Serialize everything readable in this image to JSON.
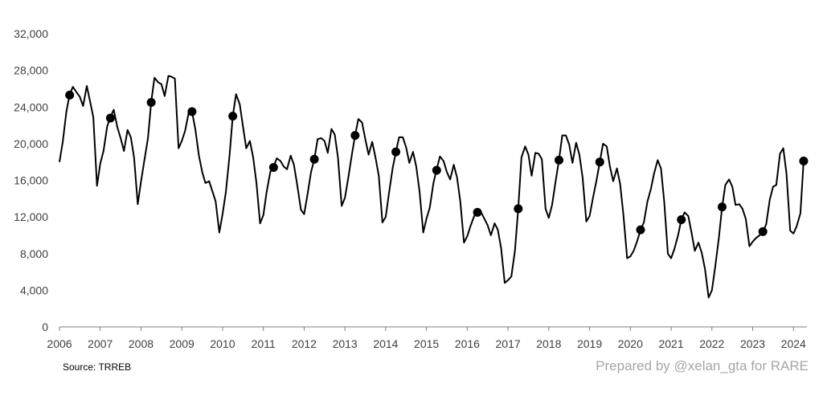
{
  "chart_data": {
    "type": "line",
    "title": "",
    "xlabel": "",
    "ylabel": "",
    "ylim": [
      0,
      32000
    ],
    "y_ticks": [
      "0",
      "4,000",
      "8,000",
      "12,000",
      "16,000",
      "20,000",
      "24,000",
      "28,000",
      "32,000"
    ],
    "x_ticks": [
      "2006",
      "2007",
      "2008",
      "2009",
      "2010",
      "2011",
      "2012",
      "2013",
      "2014",
      "2015",
      "2016",
      "2017",
      "2018",
      "2019",
      "2020",
      "2021",
      "2022",
      "2023",
      "2024"
    ],
    "grid": false,
    "line_color": "#000000",
    "series": [
      {
        "name": "",
        "values": [
          [
            2006.0,
            18000
          ],
          [
            2006.08,
            20200
          ],
          [
            2006.17,
            23500
          ],
          [
            2006.25,
            25400
          ],
          [
            2006.33,
            26200
          ],
          [
            2006.42,
            25600
          ],
          [
            2006.5,
            25100
          ],
          [
            2006.58,
            24100
          ],
          [
            2006.67,
            26300
          ],
          [
            2006.75,
            24600
          ],
          [
            2006.83,
            22900
          ],
          [
            2006.92,
            15400
          ],
          [
            2007.0,
            17800
          ],
          [
            2007.08,
            19200
          ],
          [
            2007.17,
            21900
          ],
          [
            2007.25,
            22900
          ],
          [
            2007.33,
            23700
          ],
          [
            2007.42,
            21800
          ],
          [
            2007.5,
            20600
          ],
          [
            2007.58,
            19200
          ],
          [
            2007.67,
            21500
          ],
          [
            2007.75,
            20700
          ],
          [
            2007.83,
            18500
          ],
          [
            2007.92,
            13400
          ],
          [
            2008.0,
            15900
          ],
          [
            2008.08,
            18100
          ],
          [
            2008.17,
            20600
          ],
          [
            2008.25,
            24600
          ],
          [
            2008.33,
            27200
          ],
          [
            2008.42,
            26700
          ],
          [
            2008.5,
            26500
          ],
          [
            2008.58,
            25200
          ],
          [
            2008.67,
            27400
          ],
          [
            2008.75,
            27300
          ],
          [
            2008.83,
            27100
          ],
          [
            2008.92,
            19500
          ],
          [
            2009.0,
            20300
          ],
          [
            2009.08,
            21400
          ],
          [
            2009.17,
            23400
          ],
          [
            2009.25,
            23500
          ],
          [
            2009.33,
            21600
          ],
          [
            2009.42,
            18700
          ],
          [
            2009.5,
            16900
          ],
          [
            2009.58,
            15700
          ],
          [
            2009.67,
            15900
          ],
          [
            2009.75,
            14800
          ],
          [
            2009.83,
            13700
          ],
          [
            2009.92,
            10300
          ],
          [
            2010.0,
            12300
          ],
          [
            2010.08,
            14700
          ],
          [
            2010.17,
            18700
          ],
          [
            2010.25,
            23000
          ],
          [
            2010.33,
            25400
          ],
          [
            2010.42,
            24300
          ],
          [
            2010.5,
            21900
          ],
          [
            2010.58,
            19500
          ],
          [
            2010.67,
            20300
          ],
          [
            2010.75,
            18500
          ],
          [
            2010.83,
            15700
          ],
          [
            2010.92,
            11300
          ],
          [
            2011.0,
            12200
          ],
          [
            2011.08,
            14700
          ],
          [
            2011.17,
            16900
          ],
          [
            2011.25,
            17500
          ],
          [
            2011.33,
            18400
          ],
          [
            2011.42,
            18100
          ],
          [
            2011.5,
            17500
          ],
          [
            2011.58,
            17200
          ],
          [
            2011.67,
            18700
          ],
          [
            2011.75,
            17700
          ],
          [
            2011.83,
            15500
          ],
          [
            2011.92,
            12800
          ],
          [
            2012.0,
            12300
          ],
          [
            2012.08,
            14400
          ],
          [
            2012.17,
            16900
          ],
          [
            2012.25,
            18300
          ],
          [
            2012.33,
            20500
          ],
          [
            2012.42,
            20600
          ],
          [
            2012.5,
            20300
          ],
          [
            2012.58,
            19000
          ],
          [
            2012.67,
            21600
          ],
          [
            2012.75,
            21000
          ],
          [
            2012.83,
            18500
          ],
          [
            2012.92,
            13200
          ],
          [
            2013.0,
            14100
          ],
          [
            2013.08,
            16200
          ],
          [
            2013.17,
            18800
          ],
          [
            2013.25,
            20900
          ],
          [
            2013.33,
            22700
          ],
          [
            2013.42,
            22300
          ],
          [
            2013.5,
            20500
          ],
          [
            2013.58,
            18800
          ],
          [
            2013.67,
            20200
          ],
          [
            2013.75,
            18500
          ],
          [
            2013.83,
            16500
          ],
          [
            2013.92,
            11400
          ],
          [
            2014.0,
            12000
          ],
          [
            2014.08,
            14600
          ],
          [
            2014.17,
            17300
          ],
          [
            2014.25,
            19100
          ],
          [
            2014.33,
            20700
          ],
          [
            2014.42,
            20700
          ],
          [
            2014.5,
            19600
          ],
          [
            2014.58,
            17900
          ],
          [
            2014.67,
            19100
          ],
          [
            2014.75,
            17500
          ],
          [
            2014.83,
            14800
          ],
          [
            2014.92,
            10300
          ],
          [
            2015.0,
            11800
          ],
          [
            2015.08,
            13000
          ],
          [
            2015.17,
            15700
          ],
          [
            2015.25,
            17200
          ],
          [
            2015.33,
            18600
          ],
          [
            2015.42,
            18100
          ],
          [
            2015.5,
            16900
          ],
          [
            2015.58,
            16100
          ],
          [
            2015.67,
            17700
          ],
          [
            2015.75,
            16300
          ],
          [
            2015.83,
            13700
          ],
          [
            2015.92,
            9200
          ],
          [
            2016.0,
            9900
          ],
          [
            2016.08,
            11000
          ],
          [
            2016.17,
            12100
          ],
          [
            2016.25,
            12500
          ],
          [
            2016.33,
            12600
          ],
          [
            2016.42,
            11800
          ],
          [
            2016.5,
            11100
          ],
          [
            2016.58,
            10000
          ],
          [
            2016.67,
            11300
          ],
          [
            2016.75,
            10600
          ],
          [
            2016.83,
            8600
          ],
          [
            2016.92,
            4800
          ],
          [
            2017.0,
            5100
          ],
          [
            2017.08,
            5500
          ],
          [
            2017.17,
            8300
          ],
          [
            2017.25,
            12900
          ],
          [
            2017.33,
            18500
          ],
          [
            2017.42,
            19700
          ],
          [
            2017.5,
            18800
          ],
          [
            2017.58,
            16500
          ],
          [
            2017.67,
            19000
          ],
          [
            2017.75,
            18900
          ],
          [
            2017.83,
            18300
          ],
          [
            2017.92,
            12900
          ],
          [
            2018.0,
            11900
          ],
          [
            2018.08,
            13300
          ],
          [
            2018.17,
            16000
          ],
          [
            2018.25,
            18200
          ],
          [
            2018.33,
            20900
          ],
          [
            2018.42,
            20900
          ],
          [
            2018.5,
            19900
          ],
          [
            2018.58,
            17900
          ],
          [
            2018.67,
            20100
          ],
          [
            2018.75,
            18800
          ],
          [
            2018.83,
            16300
          ],
          [
            2018.92,
            11500
          ],
          [
            2019.0,
            12100
          ],
          [
            2019.08,
            14000
          ],
          [
            2019.17,
            16000
          ],
          [
            2019.25,
            18000
          ],
          [
            2019.33,
            20000
          ],
          [
            2019.42,
            19700
          ],
          [
            2019.5,
            17500
          ],
          [
            2019.58,
            15900
          ],
          [
            2019.67,
            17300
          ],
          [
            2019.75,
            15600
          ],
          [
            2019.83,
            12200
          ],
          [
            2019.92,
            7500
          ],
          [
            2020.0,
            7700
          ],
          [
            2020.08,
            8300
          ],
          [
            2020.17,
            9400
          ],
          [
            2020.25,
            10600
          ],
          [
            2020.33,
            11400
          ],
          [
            2020.42,
            13700
          ],
          [
            2020.5,
            15000
          ],
          [
            2020.58,
            16700
          ],
          [
            2020.67,
            18200
          ],
          [
            2020.75,
            17300
          ],
          [
            2020.83,
            13700
          ],
          [
            2020.92,
            8000
          ],
          [
            2021.0,
            7500
          ],
          [
            2021.08,
            8500
          ],
          [
            2021.17,
            10000
          ],
          [
            2021.25,
            11700
          ],
          [
            2021.33,
            12500
          ],
          [
            2021.42,
            12100
          ],
          [
            2021.5,
            10300
          ],
          [
            2021.58,
            8300
          ],
          [
            2021.67,
            9200
          ],
          [
            2021.75,
            8100
          ],
          [
            2021.83,
            6300
          ],
          [
            2021.92,
            3200
          ],
          [
            2022.0,
            4000
          ],
          [
            2022.08,
            6500
          ],
          [
            2022.17,
            9700
          ],
          [
            2022.25,
            13100
          ],
          [
            2022.33,
            15500
          ],
          [
            2022.42,
            16100
          ],
          [
            2022.5,
            15300
          ],
          [
            2022.58,
            13300
          ],
          [
            2022.67,
            13400
          ],
          [
            2022.75,
            12900
          ],
          [
            2022.83,
            11800
          ],
          [
            2022.92,
            8800
          ],
          [
            2023.0,
            9300
          ],
          [
            2023.08,
            9700
          ],
          [
            2023.17,
            10000
          ],
          [
            2023.25,
            10400
          ],
          [
            2023.33,
            11200
          ],
          [
            2023.42,
            13900
          ],
          [
            2023.5,
            15300
          ],
          [
            2023.58,
            15500
          ],
          [
            2023.67,
            18900
          ],
          [
            2023.75,
            19500
          ],
          [
            2023.83,
            16700
          ],
          [
            2023.92,
            10500
          ],
          [
            2024.0,
            10200
          ],
          [
            2024.08,
            11000
          ],
          [
            2024.17,
            12400
          ],
          [
            2024.25,
            18100
          ]
        ]
      }
    ],
    "markers": [
      [
        2006.25,
        25300
      ],
      [
        2007.25,
        22800
      ],
      [
        2008.25,
        24500
      ],
      [
        2009.25,
        23500
      ],
      [
        2010.25,
        23000
      ],
      [
        2011.25,
        17400
      ],
      [
        2012.25,
        18300
      ],
      [
        2013.25,
        20900
      ],
      [
        2014.25,
        19100
      ],
      [
        2015.25,
        17100
      ],
      [
        2016.25,
        12500
      ],
      [
        2017.25,
        12900
      ],
      [
        2018.25,
        18200
      ],
      [
        2019.25,
        18000
      ],
      [
        2020.25,
        10600
      ],
      [
        2021.25,
        11700
      ],
      [
        2022.25,
        13100
      ],
      [
        2023.25,
        10400
      ],
      [
        2024.25,
        18100
      ]
    ]
  },
  "footer": {
    "source": "Source: TRREB",
    "credit": "Prepared by @xelan_gta for RARE"
  }
}
